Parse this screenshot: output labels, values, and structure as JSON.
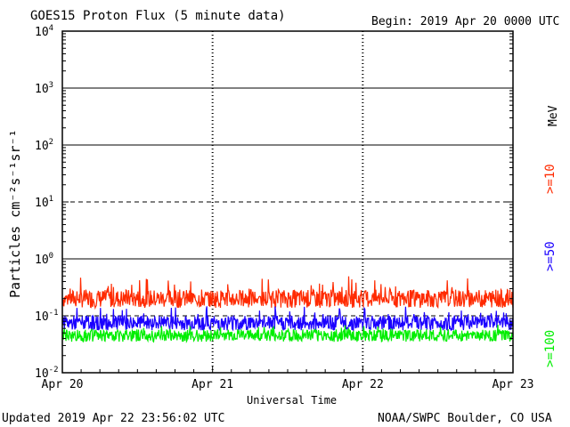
{
  "chart_data": {
    "type": "line",
    "title": "GOES15 Proton Flux (5 minute data)",
    "begin_label": "Begin: 2019 Apr 20 0000 UTC",
    "xlabel": "Universal Time",
    "ylabel": "Particles cm⁻²s⁻¹sr⁻¹",
    "y_scale": "log",
    "ylim": [
      0.01,
      10000
    ],
    "y_ticks": [
      {
        "exp": "-2",
        "value": 0.01
      },
      {
        "exp": "-1",
        "value": 0.1
      },
      {
        "exp": "0",
        "value": 1
      },
      {
        "exp": "1",
        "value": 10
      },
      {
        "exp": "2",
        "value": 100
      },
      {
        "exp": "3",
        "value": 1000
      },
      {
        "exp": "4",
        "value": 10000
      }
    ],
    "x_ticks": [
      "Apr 20",
      "Apr 21",
      "Apr 22",
      "Apr 23"
    ],
    "xlim_days": [
      0,
      3
    ],
    "thresholds": [
      {
        "value": 10,
        "style": "dashed"
      },
      {
        "value": 0.1,
        "style": "dashed"
      }
    ],
    "legend_unit": "MeV",
    "series": [
      {
        "name": ">=10",
        "color": "#ff2a00",
        "typical": 0.2,
        "low": 0.13,
        "high": 0.5
      },
      {
        "name": ">=50",
        "color": "#1a00ff",
        "typical": 0.075,
        "low": 0.05,
        "high": 0.15
      },
      {
        "name": ">=100",
        "color": "#00ee00",
        "typical": 0.045,
        "low": 0.028,
        "high": 0.07
      }
    ]
  },
  "footer": {
    "updated": "Updated 2019 Apr 22 23:56:02 UTC",
    "source": "NOAA/SWPC Boulder, CO USA"
  }
}
